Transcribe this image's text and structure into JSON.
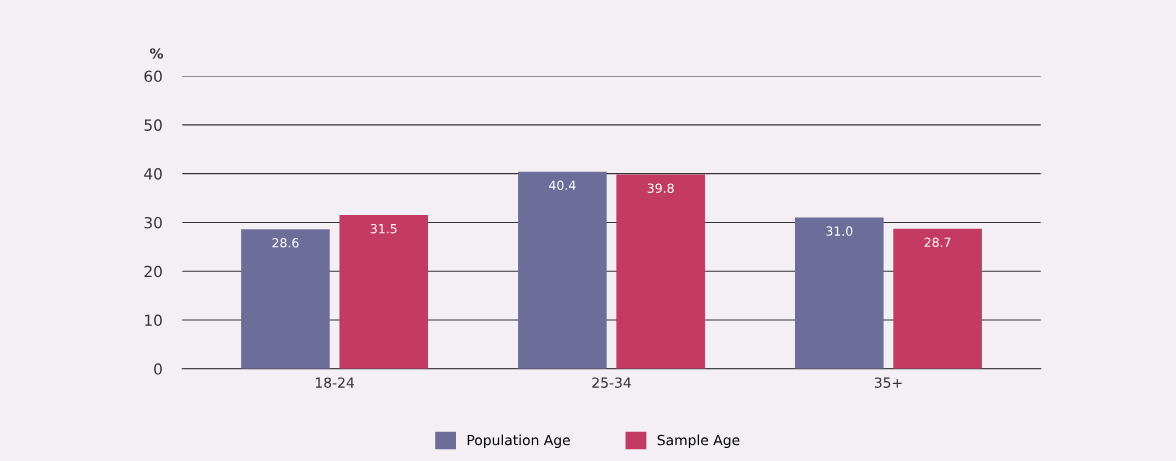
{
  "chart_data": {
    "type": "bar",
    "ylabel": "%",
    "categories": [
      "18-24",
      "25-34",
      "35+"
    ],
    "series": [
      {
        "name": "Population Age",
        "color": "#6d6d9a",
        "values": [
          28.6,
          40.4,
          31.0
        ],
        "value_labels": [
          "28.6",
          "40.4",
          "31.0"
        ]
      },
      {
        "name": "Sample Age",
        "color": "#c33a62",
        "values": [
          31.5,
          39.8,
          28.7
        ],
        "value_labels": [
          "31.5",
          "39.8",
          "28.7"
        ]
      }
    ],
    "ylim": [
      0,
      60
    ],
    "yticks": [
      0,
      10,
      20,
      30,
      40,
      50,
      60
    ],
    "grid": "y",
    "legend": "bottom"
  }
}
